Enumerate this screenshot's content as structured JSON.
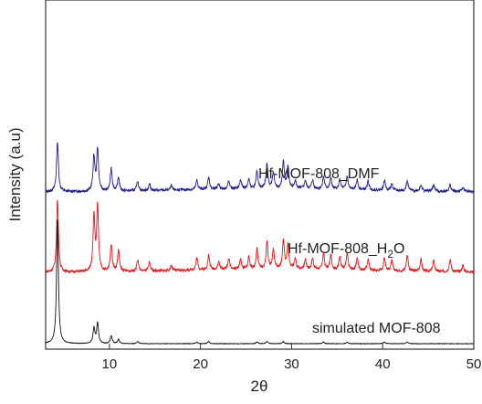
{
  "chart_data": {
    "type": "line",
    "title": "",
    "xlabel": "2θ",
    "ylabel": "Intensity (a.u)",
    "xlim": [
      3,
      50
    ],
    "xticks": [
      "10",
      "20",
      "30",
      "40",
      "50"
    ],
    "grid": false,
    "legend": "inline labels beside each trace",
    "series": [
      {
        "name": "Hf-MOF-808_DMF",
        "color": "#1f1f8f",
        "peaks": [
          [
            4.3,
            0.92
          ],
          [
            8.3,
            0.62
          ],
          [
            8.7,
            0.78
          ],
          [
            10.2,
            0.42
          ],
          [
            11.0,
            0.25
          ],
          [
            13.1,
            0.18
          ],
          [
            14.4,
            0.12
          ],
          [
            16.8,
            0.08
          ],
          [
            19.6,
            0.17
          ],
          [
            20.9,
            0.22
          ],
          [
            22.0,
            0.1
          ],
          [
            23.1,
            0.14
          ],
          [
            24.4,
            0.16
          ],
          [
            25.3,
            0.18
          ],
          [
            26.2,
            0.32
          ],
          [
            27.3,
            0.45
          ],
          [
            28.0,
            0.3
          ],
          [
            29.1,
            0.48
          ],
          [
            29.6,
            0.4
          ],
          [
            30.4,
            0.15
          ],
          [
            31.5,
            0.15
          ],
          [
            32.3,
            0.16
          ],
          [
            33.5,
            0.22
          ],
          [
            34.3,
            0.2
          ],
          [
            35.3,
            0.18
          ],
          [
            36.1,
            0.24
          ],
          [
            37.2,
            0.18
          ],
          [
            38.4,
            0.16
          ],
          [
            40.2,
            0.18
          ],
          [
            41.0,
            0.12
          ],
          [
            42.7,
            0.18
          ],
          [
            44.2,
            0.12
          ],
          [
            45.6,
            0.12
          ],
          [
            47.4,
            0.12
          ],
          [
            48.8,
            0.08
          ]
        ]
      },
      {
        "name": "Hf-MOF-808_H2O",
        "color": "#e0161a",
        "peaks": [
          [
            4.3,
            1.32
          ],
          [
            8.3,
            1.02
          ],
          [
            8.7,
            1.18
          ],
          [
            10.2,
            0.5
          ],
          [
            11.0,
            0.38
          ],
          [
            13.1,
            0.2
          ],
          [
            14.4,
            0.15
          ],
          [
            16.8,
            0.1
          ],
          [
            19.6,
            0.22
          ],
          [
            20.9,
            0.26
          ],
          [
            22.0,
            0.14
          ],
          [
            23.1,
            0.2
          ],
          [
            24.4,
            0.18
          ],
          [
            25.3,
            0.22
          ],
          [
            26.2,
            0.36
          ],
          [
            27.3,
            0.5
          ],
          [
            28.0,
            0.35
          ],
          [
            29.1,
            0.52
          ],
          [
            29.6,
            0.44
          ],
          [
            30.4,
            0.18
          ],
          [
            31.5,
            0.18
          ],
          [
            32.3,
            0.2
          ],
          [
            33.5,
            0.28
          ],
          [
            34.3,
            0.26
          ],
          [
            35.3,
            0.24
          ],
          [
            36.1,
            0.3
          ],
          [
            37.2,
            0.22
          ],
          [
            38.4,
            0.2
          ],
          [
            40.2,
            0.24
          ],
          [
            41.0,
            0.18
          ],
          [
            42.7,
            0.3
          ],
          [
            44.2,
            0.22
          ],
          [
            45.6,
            0.2
          ],
          [
            47.4,
            0.22
          ],
          [
            48.8,
            0.12
          ]
        ]
      },
      {
        "name": "simulated MOF-808",
        "color": "#111111",
        "peaks": [
          [
            4.3,
            2.28
          ],
          [
            8.3,
            0.28
          ],
          [
            8.7,
            0.38
          ],
          [
            10.2,
            0.14
          ],
          [
            11.0,
            0.08
          ],
          [
            13.1,
            0.04
          ],
          [
            19.6,
            0.03
          ],
          [
            20.9,
            0.04
          ],
          [
            26.2,
            0.03
          ],
          [
            27.3,
            0.04
          ],
          [
            29.1,
            0.04
          ],
          [
            33.5,
            0.03
          ],
          [
            36.1,
            0.03
          ],
          [
            40.2,
            0.03
          ],
          [
            42.7,
            0.03
          ]
        ]
      }
    ]
  }
}
